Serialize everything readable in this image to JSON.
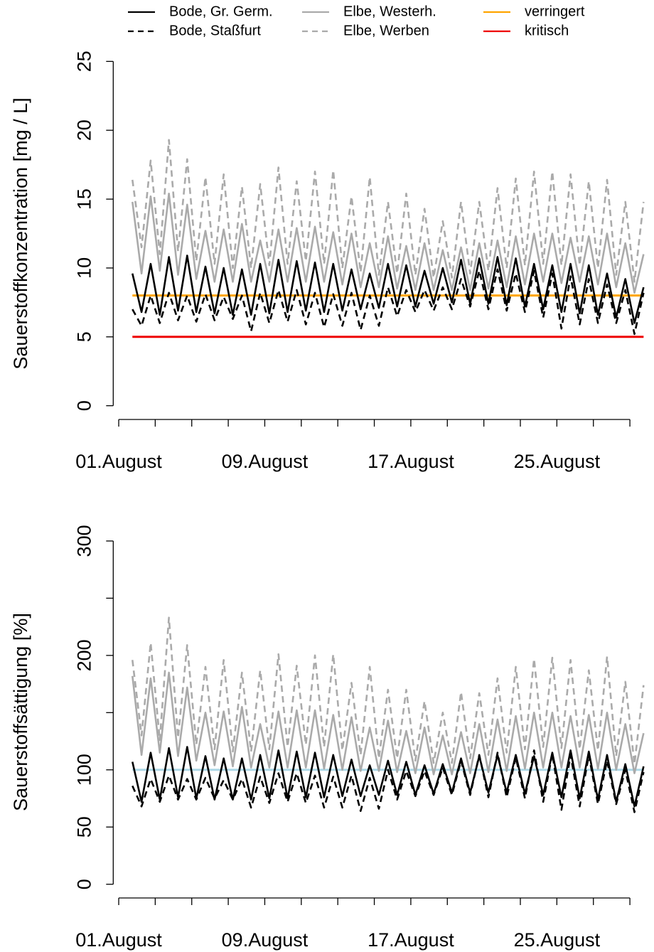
{
  "chart_data": [
    {
      "type": "line",
      "ylabel": "Sauerstoffkonzentration [mg / L]",
      "x": [
        1.75,
        2.25,
        2.75,
        3.25,
        3.75,
        4.25,
        4.75,
        5.25,
        5.75,
        6.25,
        6.75,
        7.25,
        7.75,
        8.25,
        8.75,
        9.25,
        9.75,
        10.25,
        10.75,
        11.25,
        11.75,
        12.25,
        12.75,
        13.25,
        13.75,
        14.25,
        14.75,
        15.25,
        15.75,
        16.25,
        16.75,
        17.25,
        17.75,
        18.25,
        18.75,
        19.25,
        19.75,
        20.25,
        20.75,
        21.25,
        21.75,
        22.25,
        22.75,
        23.25,
        23.75,
        24.25,
        24.75,
        25.25,
        25.75,
        26.25,
        26.75,
        27.25,
        27.75,
        28.25,
        28.75,
        29.25,
        29.75
      ],
      "xlim": [
        0.7,
        29.9
      ],
      "xticks": [
        {
          "value": 1,
          "label": "01.August"
        },
        {
          "value": 3,
          "label": null
        },
        {
          "value": 5,
          "label": null
        },
        {
          "value": 7,
          "label": null
        },
        {
          "value": 9,
          "label": "09.August"
        },
        {
          "value": 11,
          "label": null
        },
        {
          "value": 13,
          "label": null
        },
        {
          "value": 15,
          "label": null
        },
        {
          "value": 17,
          "label": "17.August"
        },
        {
          "value": 19,
          "label": null
        },
        {
          "value": 21,
          "label": null
        },
        {
          "value": 23,
          "label": null
        },
        {
          "value": 25,
          "label": "25.August"
        },
        {
          "value": 27,
          "label": null
        },
        {
          "value": 29,
          "label": null
        }
      ],
      "ylim": [
        -1,
        26
      ],
      "yticks": [
        0,
        5,
        10,
        15,
        20,
        25
      ],
      "series": [
        {
          "name": "Bode, Gr. Germ.",
          "color": "#000000",
          "dashed": false,
          "values": [
            9.6,
            6.8,
            10.3,
            6.6,
            10.8,
            6.9,
            10.9,
            6.8,
            10.1,
            6.7,
            10.0,
            6.6,
            9.9,
            6.6,
            10.3,
            6.7,
            10.6,
            6.8,
            10.5,
            6.9,
            10.4,
            6.8,
            10.3,
            6.9,
            9.9,
            7.0,
            9.6,
            7.1,
            10.3,
            7.2,
            10.2,
            7.2,
            9.8,
            7.4,
            10.0,
            7.5,
            10.6,
            7.4,
            10.7,
            7.4,
            10.8,
            7.3,
            10.7,
            7.2,
            10.3,
            7.0,
            10.2,
            6.8,
            10.3,
            6.7,
            10.2,
            6.6,
            9.6,
            6.4,
            9.2,
            6.0,
            8.6
          ]
        },
        {
          "name": "Bode, Staßfurt",
          "color": "#000000",
          "dashed": true,
          "values": [
            7.0,
            5.8,
            8.0,
            6.0,
            8.2,
            6.2,
            8.0,
            6.1,
            8.1,
            6.2,
            7.9,
            6.3,
            8.0,
            5.4,
            8.2,
            6.0,
            8.4,
            6.1,
            8.4,
            5.9,
            8.2,
            5.7,
            8.1,
            5.8,
            8.2,
            5.5,
            8.0,
            5.8,
            8.6,
            6.5,
            8.4,
            6.8,
            8.4,
            6.9,
            8.6,
            7.0,
            9.2,
            7.2,
            9.8,
            7.0,
            9.9,
            6.9,
            9.6,
            6.8,
            9.8,
            6.4,
            9.6,
            5.6,
            9.4,
            5.9,
            9.2,
            6.0,
            8.8,
            6.0,
            8.4,
            5.2,
            8.2
          ]
        },
        {
          "name": "Elbe, Westerh.",
          "color": "#aaaaaa",
          "dashed": false,
          "values": [
            14.8,
            9.6,
            15.2,
            9.8,
            15.4,
            9.5,
            14.6,
            9.2,
            12.7,
            9.0,
            12.8,
            9.0,
            13.2,
            9.0,
            12.0,
            9.0,
            12.8,
            9.0,
            12.9,
            9.0,
            13.0,
            9.0,
            12.6,
            8.8,
            12.5,
            8.6,
            11.8,
            8.6,
            12.3,
            8.5,
            11.6,
            8.4,
            11.8,
            8.4,
            11.3,
            8.4,
            11.5,
            8.4,
            11.8,
            8.5,
            12.0,
            8.6,
            12.3,
            8.8,
            12.5,
            9.0,
            12.5,
            8.9,
            12.2,
            9.0,
            12.3,
            8.8,
            12.5,
            8.6,
            11.8,
            8.2,
            11.0
          ]
        },
        {
          "name": "Elbe, Werben",
          "color": "#aaaaaa",
          "dashed": true,
          "values": [
            16.4,
            11.5,
            17.8,
            11.0,
            19.3,
            11.2,
            17.9,
            10.5,
            16.6,
            10.3,
            16.8,
            10.0,
            15.9,
            10.0,
            16.1,
            10.2,
            17.3,
            10.3,
            16.3,
            10.5,
            17.0,
            10.3,
            17.1,
            10.0,
            15.2,
            9.7,
            16.6,
            9.5,
            14.8,
            9.6,
            15.4,
            9.5,
            14.3,
            9.3,
            13.4,
            9.3,
            14.8,
            9.6,
            14.8,
            9.8,
            15.8,
            10.0,
            16.5,
            10.2,
            17.0,
            10.3,
            17.0,
            10.2,
            16.8,
            10.2,
            16.3,
            10.0,
            16.4,
            9.5,
            14.8,
            9.0,
            14.8
          ]
        }
      ],
      "hlines": [
        {
          "name": "verringert",
          "color": "#ffa500",
          "value": 8
        },
        {
          "name": "kritisch",
          "color": "#ee0000",
          "value": 5
        }
      ]
    },
    {
      "type": "line",
      "ylabel": "Sauerstoffsättigung [%]",
      "x": [
        1.75,
        2.25,
        2.75,
        3.25,
        3.75,
        4.25,
        4.75,
        5.25,
        5.75,
        6.25,
        6.75,
        7.25,
        7.75,
        8.25,
        8.75,
        9.25,
        9.75,
        10.25,
        10.75,
        11.25,
        11.75,
        12.25,
        12.75,
        13.25,
        13.75,
        14.25,
        14.75,
        15.25,
        15.75,
        16.25,
        16.75,
        17.25,
        17.75,
        18.25,
        18.75,
        19.25,
        19.75,
        20.25,
        20.75,
        21.25,
        21.75,
        22.25,
        22.75,
        23.25,
        23.75,
        24.25,
        24.75,
        25.25,
        25.75,
        26.25,
        26.75,
        27.25,
        27.75,
        28.25,
        28.75,
        29.25,
        29.75
      ],
      "xlim": [
        0.7,
        29.9
      ],
      "xticks": [
        {
          "value": 1,
          "label": "01.August"
        },
        {
          "value": 3,
          "label": null
        },
        {
          "value": 5,
          "label": null
        },
        {
          "value": 7,
          "label": null
        },
        {
          "value": 9,
          "label": "09.August"
        },
        {
          "value": 11,
          "label": null
        },
        {
          "value": 13,
          "label": null
        },
        {
          "value": 15,
          "label": null
        },
        {
          "value": 17,
          "label": "17.August"
        },
        {
          "value": 19,
          "label": null
        },
        {
          "value": 21,
          "label": null
        },
        {
          "value": 23,
          "label": null
        },
        {
          "value": 25,
          "label": "25.August"
        },
        {
          "value": 27,
          "label": null
        },
        {
          "value": 29,
          "label": null
        }
      ],
      "ylim": [
        -12,
        313
      ],
      "yticks": [
        0,
        50,
        100,
        {
          "value": 150,
          "label": null
        },
        200,
        {
          "value": 250,
          "label": null
        },
        300
      ],
      "series": [
        {
          "color": "#000000",
          "dashed": false,
          "values": [
            107,
            72,
            115,
            74,
            119,
            76,
            120,
            75,
            112,
            74,
            110,
            74,
            110,
            74,
            113,
            75,
            117,
            75,
            116,
            76,
            115,
            76,
            113,
            77,
            109,
            77,
            104,
            78,
            108,
            78,
            107,
            78,
            104,
            79,
            105,
            80,
            110,
            80,
            112,
            80,
            113,
            80,
            113,
            79,
            112,
            78,
            115,
            76,
            117,
            75,
            116,
            74,
            113,
            72,
            105,
            68,
            103
          ]
        },
        {
          "color": "#000000",
          "dashed": true,
          "values": [
            86,
            68,
            92,
            72,
            95,
            74,
            92,
            74,
            93,
            75,
            91,
            74,
            92,
            67,
            94,
            71,
            97,
            72,
            97,
            71,
            95,
            67,
            94,
            67,
            95,
            64,
            93,
            66,
            100,
            74,
            99,
            77,
            99,
            78,
            102,
            78,
            108,
            78,
            113,
            76,
            115,
            76,
            111,
            75,
            117,
            72,
            114,
            65,
            113,
            68,
            113,
            70,
            108,
            70,
            100,
            63,
            98
          ]
        },
        {
          "color": "#aaaaaa",
          "dashed": false,
          "values": [
            182,
            113,
            180,
            115,
            185,
            112,
            172,
            108,
            150,
            104,
            151,
            103,
            155,
            102,
            140,
            102,
            151,
            102,
            152,
            102,
            152,
            101,
            148,
            100,
            146,
            99,
            137,
            99,
            143,
            98,
            134,
            97,
            137,
            96,
            130,
            96,
            133,
            97,
            140,
            98,
            144,
            99,
            147,
            101,
            150,
            102,
            150,
            102,
            147,
            102,
            148,
            101,
            150,
            100,
            140,
            97,
            132
          ]
        },
        {
          "color": "#aaaaaa",
          "dashed": true,
          "values": [
            196,
            130,
            211,
            126,
            233,
            128,
            209,
            122,
            190,
            118,
            196,
            116,
            185,
            116,
            187,
            118,
            201,
            120,
            191,
            122,
            200,
            120,
            201,
            117,
            176,
            113,
            190,
            110,
            170,
            110,
            170,
            108,
            160,
            106,
            150,
            106,
            168,
            110,
            167,
            113,
            180,
            115,
            190,
            118,
            197,
            120,
            198,
            119,
            196,
            118,
            187,
            117,
            199,
            112,
            177,
            105,
            174
          ]
        }
      ],
      "hlines": [
        {
          "color": "#add8e6",
          "value": 100
        }
      ]
    }
  ]
}
